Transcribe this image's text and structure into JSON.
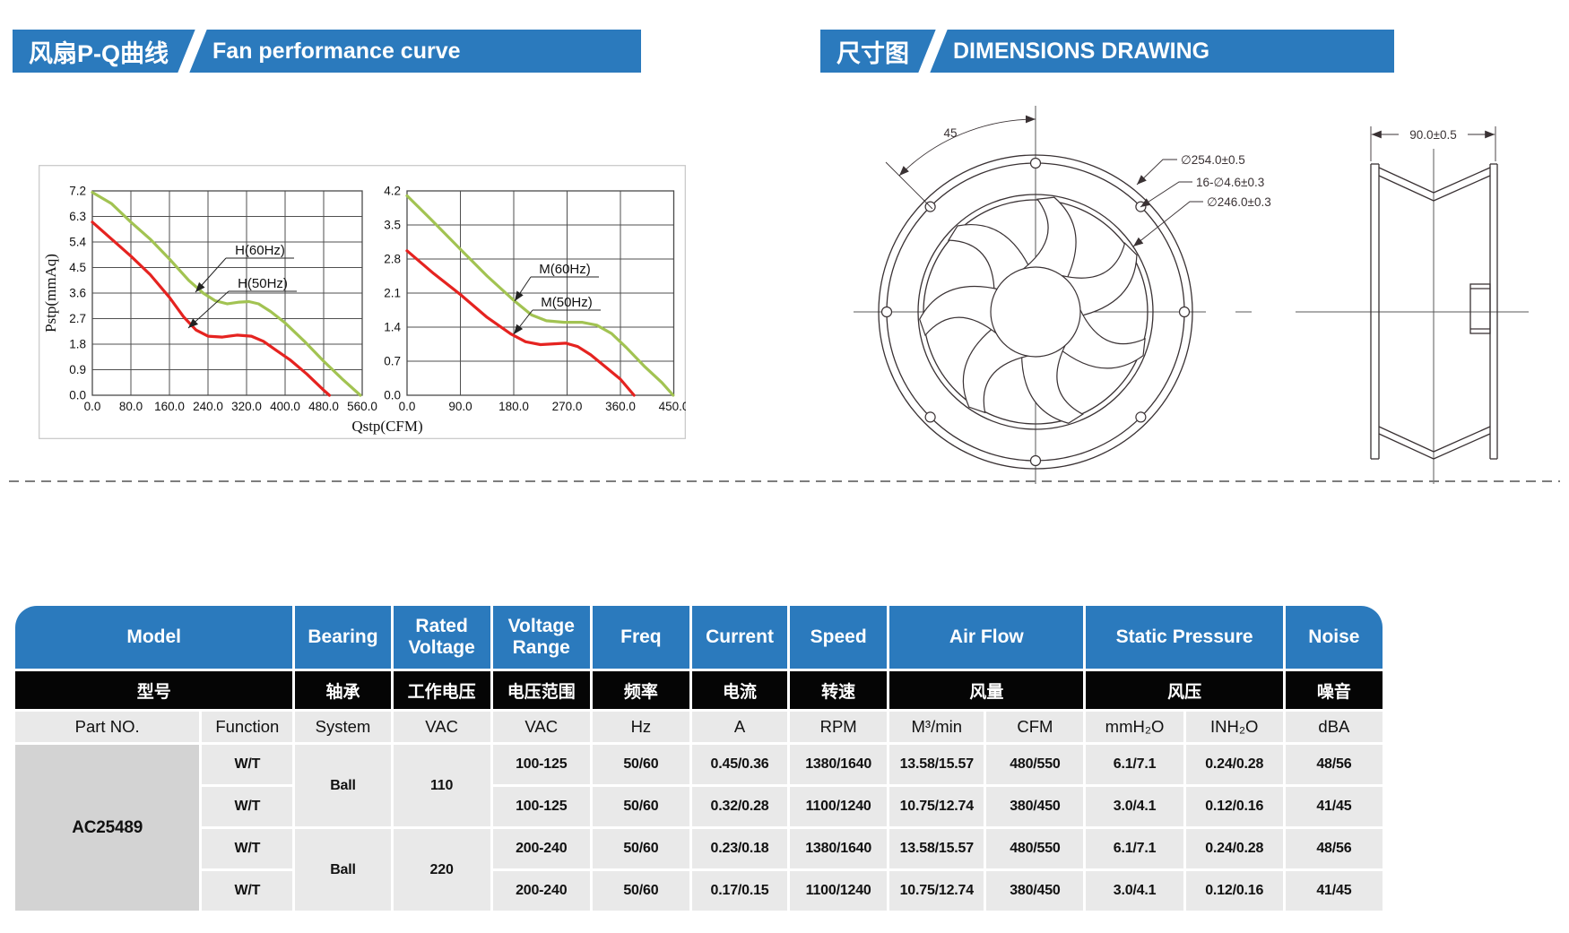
{
  "header_left": {
    "cn": "风扇P-Q曲线",
    "en": "Fan performance curve"
  },
  "header_right": {
    "cn": "尺寸图",
    "en": "DIMENSIONS DRAWING"
  },
  "colors": {
    "accent_blue": "#2b7abd",
    "curve_green": "#a2c352",
    "curve_red": "#e52320"
  },
  "chart_data": [
    {
      "type": "line",
      "xlabel": "Qstp(CFM)",
      "ylabel": "Pstp(mmAq)",
      "xlim": [
        0,
        560
      ],
      "xstep": 80,
      "ylim": [
        0,
        7.2
      ],
      "ystep": 0.9,
      "grid": true,
      "series": [
        {
          "name": "H(60Hz)",
          "color": "#a2c352",
          "points": [
            [
              0,
              7.15
            ],
            [
              40,
              6.75
            ],
            [
              80,
              6.1
            ],
            [
              120,
              5.5
            ],
            [
              160,
              4.8
            ],
            [
              200,
              4.05
            ],
            [
              230,
              3.6
            ],
            [
              255,
              3.33
            ],
            [
              280,
              3.22
            ],
            [
              305,
              3.28
            ],
            [
              325,
              3.3
            ],
            [
              345,
              3.22
            ],
            [
              370,
              2.95
            ],
            [
              400,
              2.55
            ],
            [
              440,
              1.9
            ],
            [
              480,
              1.2
            ],
            [
              520,
              0.55
            ],
            [
              556,
              0.0
            ]
          ]
        },
        {
          "name": "H(50Hz)",
          "color": "#e52320",
          "points": [
            [
              0,
              6.1
            ],
            [
              40,
              5.5
            ],
            [
              80,
              4.9
            ],
            [
              120,
              4.25
            ],
            [
              160,
              3.45
            ],
            [
              190,
              2.75
            ],
            [
              215,
              2.3
            ],
            [
              240,
              2.08
            ],
            [
              270,
              2.05
            ],
            [
              300,
              2.12
            ],
            [
              330,
              2.08
            ],
            [
              355,
              1.9
            ],
            [
              380,
              1.6
            ],
            [
              410,
              1.25
            ],
            [
              445,
              0.75
            ],
            [
              480,
              0.18
            ],
            [
              492,
              0.0
            ]
          ]
        }
      ]
    },
    {
      "type": "line",
      "xlabel": "",
      "ylabel": "",
      "xlim": [
        0,
        450
      ],
      "xstep": 90,
      "ylim": [
        0,
        4.2
      ],
      "ystep": 0.7,
      "grid": true,
      "series": [
        {
          "name": "M(60Hz)",
          "color": "#a2c352",
          "points": [
            [
              0,
              4.1
            ],
            [
              40,
              3.62
            ],
            [
              90,
              3.0
            ],
            [
              135,
              2.45
            ],
            [
              180,
              1.95
            ],
            [
              210,
              1.65
            ],
            [
              235,
              1.53
            ],
            [
              265,
              1.5
            ],
            [
              295,
              1.5
            ],
            [
              320,
              1.44
            ],
            [
              345,
              1.27
            ],
            [
              370,
              0.98
            ],
            [
              400,
              0.6
            ],
            [
              430,
              0.26
            ],
            [
              449,
              0.0
            ]
          ]
        },
        {
          "name": "M(50Hz)",
          "color": "#e52320",
          "points": [
            [
              0,
              2.97
            ],
            [
              45,
              2.5
            ],
            [
              90,
              2.07
            ],
            [
              135,
              1.6
            ],
            [
              175,
              1.26
            ],
            [
              200,
              1.1
            ],
            [
              225,
              1.04
            ],
            [
              252,
              1.06
            ],
            [
              268,
              1.07
            ],
            [
              288,
              1.0
            ],
            [
              310,
              0.83
            ],
            [
              335,
              0.58
            ],
            [
              360,
              0.33
            ],
            [
              383,
              0.0
            ]
          ]
        }
      ]
    }
  ],
  "dims": {
    "angle_label": "45",
    "dia_outer": "∅254.0±0.5",
    "holes": "16-∅4.6±0.3",
    "dia_inner": "∅246.0±0.3",
    "depth": "90.0±0.5"
  },
  "table": {
    "header_row1": [
      "Model",
      "Bearing",
      "Rated Voltage",
      "Voltage Range",
      "Freq",
      "Current",
      "Speed",
      "Air Flow",
      "Static Pressure",
      "Noise"
    ],
    "header_row2": [
      "型号",
      "轴承",
      "工作电压",
      "电压范围",
      "频率",
      "电流",
      "转速",
      "风量",
      "风压",
      "噪音"
    ],
    "header_row3": [
      "Part NO.",
      "Function",
      "System",
      "VAC",
      "VAC",
      "Hz",
      "A",
      "RPM",
      "M³/min",
      "CFM",
      "mmH₂O",
      "INH₂O",
      "dBA"
    ],
    "part_no": "AC25489",
    "groups": [
      {
        "bearing": "Ball",
        "rated_voltage": "110",
        "rows": [
          {
            "function": "W/T",
            "voltage_range": "100-125",
            "freq": "50/60",
            "current": "0.45/0.36",
            "speed": "1380/1640",
            "airflow_m3min": "13.58/15.57",
            "airflow_cfm": "480/550",
            "pressure_mmh2o": "6.1/7.1",
            "pressure_inh2o": "0.24/0.28",
            "noise": "48/56"
          },
          {
            "function": "W/T",
            "voltage_range": "100-125",
            "freq": "50/60",
            "current": "0.32/0.28",
            "speed": "1100/1240",
            "airflow_m3min": "10.75/12.74",
            "airflow_cfm": "380/450",
            "pressure_mmh2o": "3.0/4.1",
            "pressure_inh2o": "0.12/0.16",
            "noise": "41/45"
          }
        ]
      },
      {
        "bearing": "Ball",
        "rated_voltage": "220",
        "rows": [
          {
            "function": "W/T",
            "voltage_range": "200-240",
            "freq": "50/60",
            "current": "0.23/0.18",
            "speed": "1380/1640",
            "airflow_m3min": "13.58/15.57",
            "airflow_cfm": "480/550",
            "pressure_mmh2o": "6.1/7.1",
            "pressure_inh2o": "0.24/0.28",
            "noise": "48/56"
          },
          {
            "function": "W/T",
            "voltage_range": "200-240",
            "freq": "50/60",
            "current": "0.17/0.15",
            "speed": "1100/1240",
            "airflow_m3min": "10.75/12.74",
            "airflow_cfm": "380/450",
            "pressure_mmh2o": "3.0/4.1",
            "pressure_inh2o": "0.12/0.16",
            "noise": "41/45"
          }
        ]
      }
    ]
  }
}
